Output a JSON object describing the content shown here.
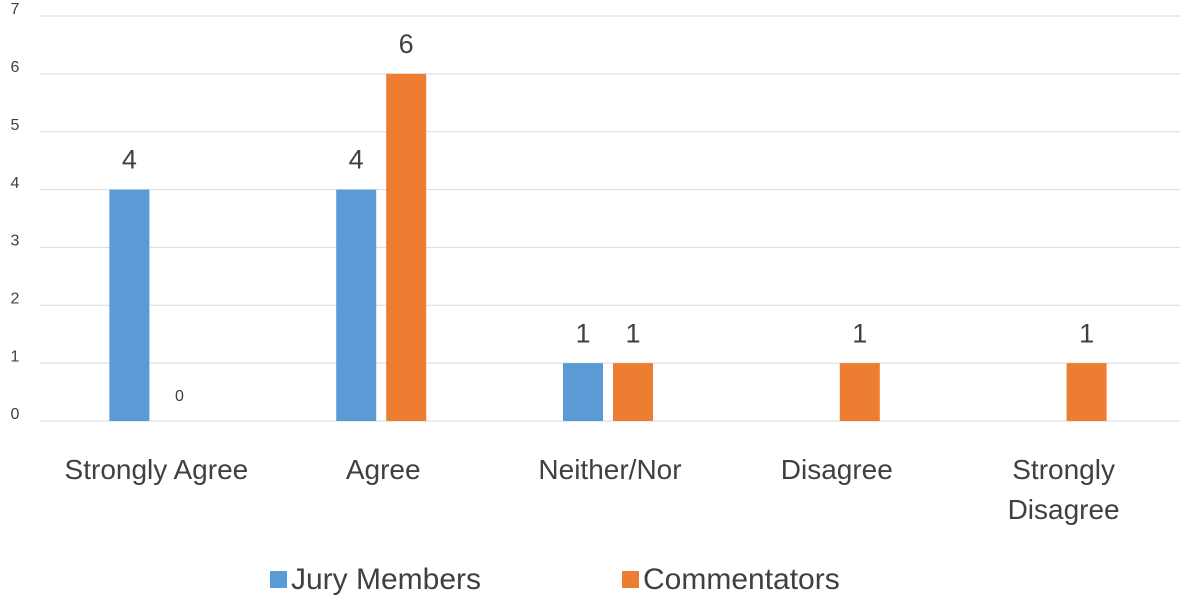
{
  "chart_data": {
    "type": "bar",
    "categories": [
      "Strongly Agree",
      "Agree",
      "Neither/Nor",
      "Disagree",
      "Strongly Disagree"
    ],
    "series": [
      {
        "name": "Jury Members",
        "color": "#5b9bd5",
        "values": [
          4,
          4,
          1,
          null,
          null
        ]
      },
      {
        "name": "Commentators",
        "color": "#ed7d31",
        "values": [
          0,
          6,
          1,
          1,
          1
        ]
      }
    ],
    "ylim": [
      0,
      7
    ],
    "yticks": [
      0,
      1,
      2,
      3,
      4,
      5,
      6,
      7
    ],
    "grid": true,
    "legend": "bottom"
  }
}
